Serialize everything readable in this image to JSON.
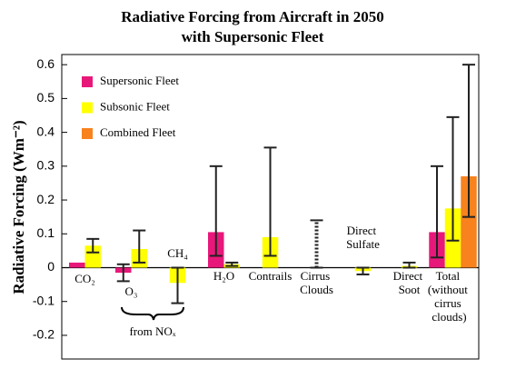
{
  "chart_data": {
    "type": "bar",
    "title": "Radiative Forcing from Aircraft in 2050",
    "subtitle": "with Supersonic Fleet",
    "y_label": "Radiative Forcing (Wm⁻²)",
    "group_label": "from NOₓ",
    "categories": [
      "CO₂",
      "O₃",
      "CH₄",
      "H₂O",
      "Contrails",
      "Cirrus Clouds",
      "Direct Sulfate",
      "Direct Soot",
      "Total (without cirrus clouds)"
    ],
    "series": [
      {
        "name": "Supersonic Fleet",
        "color": "#e8187a",
        "values": [
          0.015,
          -0.015,
          null,
          0.105,
          null,
          null,
          null,
          null,
          0.105
        ],
        "error_low": [
          null,
          -0.04,
          null,
          0.035,
          null,
          null,
          null,
          null,
          0.03
        ],
        "error_high": [
          null,
          0.01,
          null,
          0.3,
          null,
          null,
          null,
          null,
          0.3
        ]
      },
      {
        "name": "Subsonic Fleet",
        "color": "#ffff00",
        "values": [
          0.065,
          0.055,
          -0.045,
          0.01,
          0.09,
          null,
          -0.01,
          0.005,
          0.175
        ],
        "error_low": [
          0.045,
          0.015,
          -0.105,
          0.005,
          0.035,
          0.0,
          -0.02,
          0.0,
          0.08
        ],
        "error_high": [
          0.085,
          0.11,
          0.0,
          0.015,
          0.355,
          0.14,
          0.0,
          0.015,
          0.445
        ]
      },
      {
        "name": "Combined Fleet",
        "color": "#f7821e",
        "values": [
          null,
          null,
          null,
          null,
          null,
          null,
          null,
          null,
          0.27
        ],
        "error_low": [
          null,
          null,
          null,
          null,
          null,
          null,
          null,
          null,
          0.15
        ],
        "error_high": [
          null,
          null,
          null,
          null,
          null,
          null,
          null,
          null,
          0.6
        ]
      }
    ],
    "ylim": [
      -0.27,
      0.63
    ],
    "yticks": [
      -0.2,
      -0.1,
      0,
      0.1,
      0.2,
      0.3,
      0.4,
      0.5,
      0.6
    ],
    "legend": "upper left"
  }
}
